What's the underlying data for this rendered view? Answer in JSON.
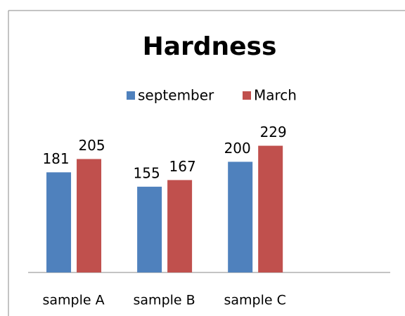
{
  "chart_data": {
    "type": "bar",
    "title": "Hardness",
    "categories": [
      "sample A",
      "sample B",
      "sample C"
    ],
    "series": [
      {
        "name": "september",
        "color": "#4f81bd",
        "values": [
          181,
          155,
          200
        ]
      },
      {
        "name": "March",
        "color": "#c0504d",
        "values": [
          205,
          167,
          229
        ]
      }
    ],
    "ylim": [
      0,
      250
    ],
    "legend": "top",
    "data_labels": true
  }
}
